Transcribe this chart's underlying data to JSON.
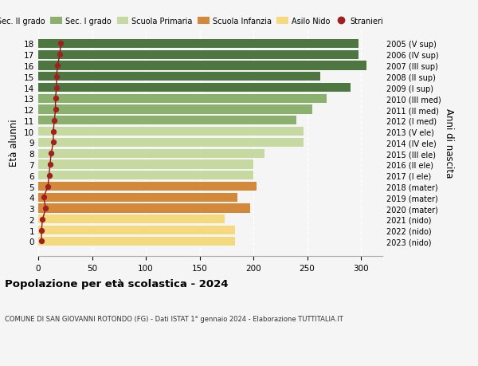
{
  "ages": [
    0,
    1,
    2,
    3,
    4,
    5,
    6,
    7,
    8,
    9,
    10,
    11,
    12,
    13,
    14,
    15,
    16,
    17,
    18
  ],
  "bar_values": [
    183,
    183,
    173,
    197,
    185,
    203,
    200,
    200,
    210,
    247,
    247,
    240,
    255,
    268,
    290,
    262,
    305,
    298,
    298
  ],
  "stranieri": [
    3,
    3,
    4,
    7,
    5,
    9,
    10,
    11,
    12,
    14,
    14,
    15,
    16,
    16,
    17,
    17,
    18,
    20,
    21
  ],
  "right_labels": [
    "2023 (nido)",
    "2022 (nido)",
    "2021 (nido)",
    "2020 (mater)",
    "2019 (mater)",
    "2018 (mater)",
    "2017 (I ele)",
    "2016 (II ele)",
    "2015 (III ele)",
    "2014 (IV ele)",
    "2013 (V ele)",
    "2012 (I med)",
    "2011 (II med)",
    "2010 (III med)",
    "2009 (I sup)",
    "2008 (II sup)",
    "2007 (III sup)",
    "2006 (IV sup)",
    "2005 (V sup)"
  ],
  "bar_colors": [
    "#f5d97e",
    "#f5d97e",
    "#f5d97e",
    "#d4883a",
    "#d4883a",
    "#d4883a",
    "#c5d9a0",
    "#c5d9a0",
    "#c5d9a0",
    "#c5d9a0",
    "#c5d9a0",
    "#8cb06e",
    "#8cb06e",
    "#8cb06e",
    "#4e7641",
    "#4e7641",
    "#4e7641",
    "#4e7641",
    "#4e7641"
  ],
  "legend_items": [
    {
      "label": "Sec. II grado",
      "color": "#4e7641"
    },
    {
      "label": "Sec. I grado",
      "color": "#8cb06e"
    },
    {
      "label": "Scuola Primaria",
      "color": "#c5d9a0"
    },
    {
      "label": "Scuola Infanzia",
      "color": "#d4883a"
    },
    {
      "label": "Asilo Nido",
      "color": "#f5d97e"
    },
    {
      "label": "Stranieri",
      "color": "#a02020"
    }
  ],
  "ylabel": "Età alunni",
  "right_ylabel": "Anni di nascita",
  "title": "Popolazione per età scolastica - 2024",
  "subtitle": "COMUNE DI SAN GIOVANNI ROTONDO (FG) - Dati ISTAT 1° gennaio 2024 - Elaborazione TUTTITALIA.IT",
  "xlim": [
    0,
    320
  ],
  "xticks": [
    0,
    50,
    100,
    150,
    200,
    250,
    300
  ],
  "background_color": "#f5f5f5",
  "plot_bg": "#f5f5f5",
  "stranieri_color": "#a02020",
  "stranieri_line_color": "#8b1a1a"
}
